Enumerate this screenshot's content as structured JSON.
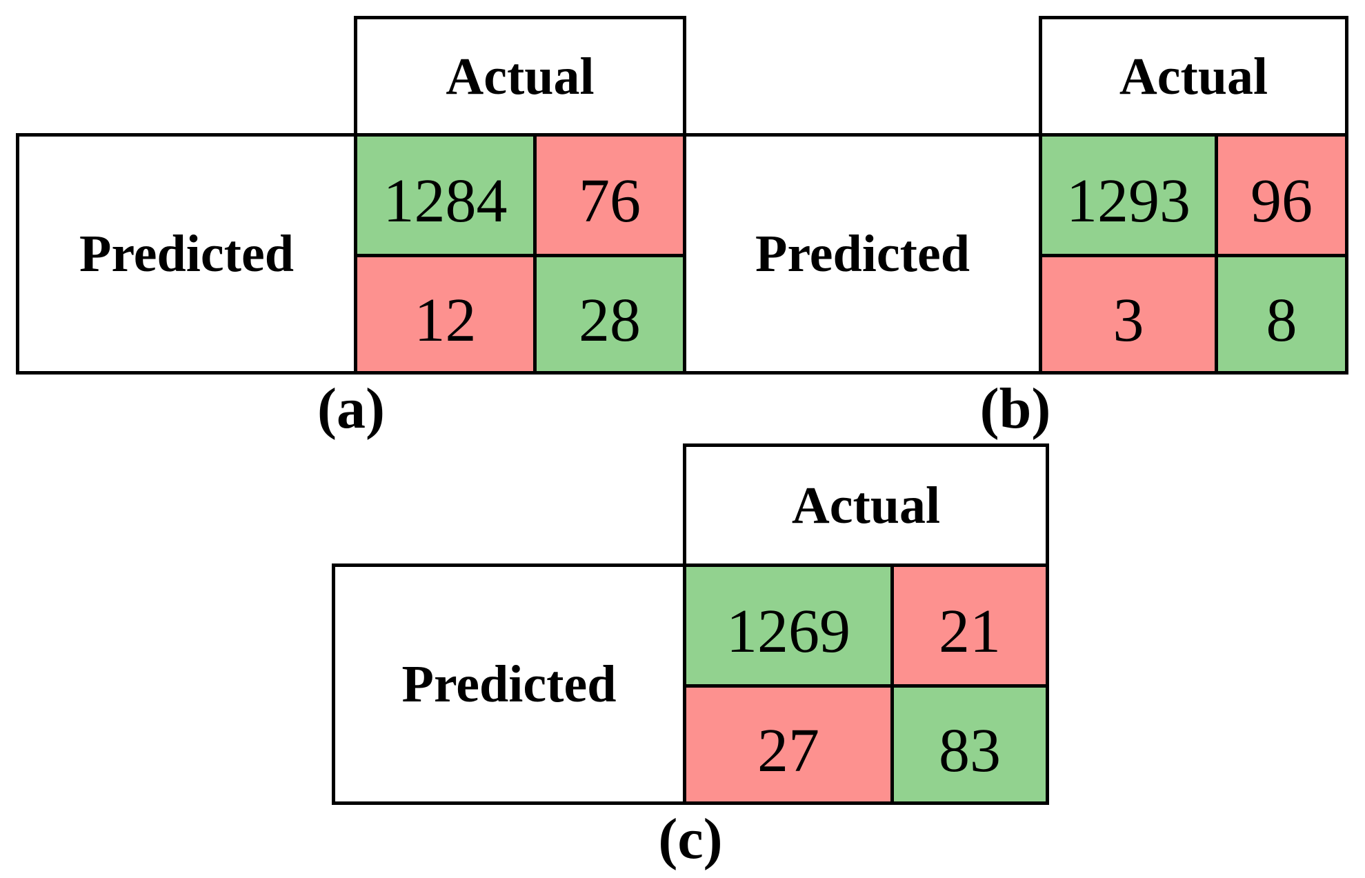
{
  "figure": {
    "matrices": [
      {
        "id": "a",
        "caption": "(a)",
        "col_header": "Actual",
        "row_header": "Predicted",
        "cells": [
          {
            "value": "1284",
            "color": "#92D28F"
          },
          {
            "value": "76",
            "color": "#FD918F"
          },
          {
            "value": "12",
            "color": "#FD918F"
          },
          {
            "value": "28",
            "color": "#92D28F"
          }
        ]
      },
      {
        "id": "b",
        "caption": "(b)",
        "col_header": "Actual",
        "row_header": "Predicted",
        "cells": [
          {
            "value": "1293",
            "color": "#92D28F"
          },
          {
            "value": "96",
            "color": "#FD918F"
          },
          {
            "value": "3",
            "color": "#FD918F"
          },
          {
            "value": "8",
            "color": "#92D28F"
          }
        ]
      },
      {
        "id": "c",
        "caption": "(c)",
        "col_header": "Actual",
        "row_header": "Predicted",
        "cells": [
          {
            "value": "1269",
            "color": "#92D28F"
          },
          {
            "value": "21",
            "color": "#FD918F"
          },
          {
            "value": "27",
            "color": "#FD918F"
          },
          {
            "value": "83",
            "color": "#92D28F"
          }
        ]
      }
    ],
    "colors": {
      "green_cell": "#92D28F",
      "red_cell": "#FD918F",
      "border": "#000000",
      "background": "#FFFFFF"
    }
  },
  "chart_data": [
    {
      "type": "heatmap",
      "caption": "(a)",
      "x_header": "Actual",
      "y_header": "Predicted",
      "matrix": [
        [
          1284,
          76
        ],
        [
          12,
          28
        ]
      ],
      "cell_colors": [
        [
          "#92D28F",
          "#FD918F"
        ],
        [
          "#FD918F",
          "#92D28F"
        ]
      ]
    },
    {
      "type": "heatmap",
      "caption": "(b)",
      "x_header": "Actual",
      "y_header": "Predicted",
      "matrix": [
        [
          1293,
          96
        ],
        [
          3,
          8
        ]
      ],
      "cell_colors": [
        [
          "#92D28F",
          "#FD918F"
        ],
        [
          "#FD918F",
          "#92D28F"
        ]
      ]
    },
    {
      "type": "heatmap",
      "caption": "(c)",
      "x_header": "Actual",
      "y_header": "Predicted",
      "matrix": [
        [
          1269,
          21
        ],
        [
          27,
          83
        ]
      ],
      "cell_colors": [
        [
          "#92D28F",
          "#FD918F"
        ],
        [
          "#FD918F",
          "#92D28F"
        ]
      ]
    }
  ]
}
